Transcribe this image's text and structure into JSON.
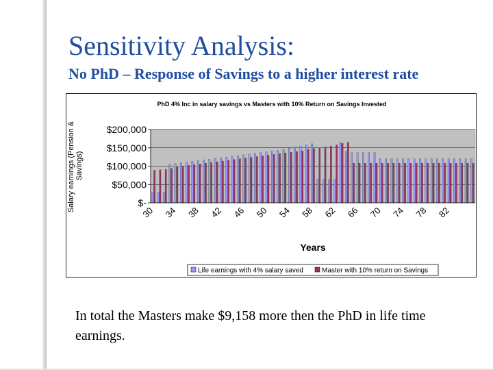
{
  "slide": {
    "title": "Sensitivity Analysis:",
    "subtitle": "No PhD – Response of Savings to a higher interest rate",
    "note": "In total the Masters make $9,158 more then the PhD in life time earnings."
  },
  "stripe_colors": [
    "#2b7fbd",
    "#87c6e8",
    "#e9e6c4",
    "#000000",
    "#4fa3d6",
    "#2a64c7",
    "#e9e6c4",
    "#1a1a1a",
    "#2aa7d6",
    "#bfe0f2"
  ],
  "chart_data": {
    "type": "bar",
    "title": "PhD 4% Inc in salary savings vs  Masters with 10% Return on Savings Invested",
    "xlabel": "Years",
    "ylabel": "Salary earnings (Pension & Savings)",
    "ylim": [
      0,
      200000
    ],
    "yticks": [
      {
        "value": 0,
        "label": "$-"
      },
      {
        "value": 50000,
        "label": "$50,000"
      },
      {
        "value": 100000,
        "label": "$100,000"
      },
      {
        "value": 150000,
        "label": "$150,000"
      },
      {
        "value": 200000,
        "label": "$200,000"
      }
    ],
    "x": [
      30,
      31,
      32,
      33,
      34,
      35,
      36,
      37,
      38,
      39,
      40,
      41,
      42,
      43,
      44,
      45,
      46,
      47,
      48,
      49,
      50,
      51,
      52,
      53,
      54,
      55,
      56,
      57,
      58,
      59,
      60,
      61,
      62,
      63,
      64,
      65,
      66,
      67,
      68,
      69,
      70,
      71,
      72,
      73,
      74,
      75,
      76,
      77,
      78,
      79,
      80,
      81,
      82,
      83,
      84,
      85,
      86
    ],
    "xtick_labels": [
      "30",
      "34",
      "38",
      "42",
      "46",
      "50",
      "54",
      "58",
      "62",
      "66",
      "70",
      "74",
      "78",
      "82"
    ],
    "xtick_every": 4,
    "grid": true,
    "plot_background": "#c0c0c0",
    "legend_position": "bottom",
    "series": [
      {
        "name": "Life earnings with 4% salary saved",
        "color": "#9999ff",
        "values": [
          28000,
          28000,
          28000,
          105000,
          107000,
          109000,
          111000,
          113000,
          115000,
          117000,
          119000,
          121000,
          123000,
          125000,
          127000,
          129000,
          131000,
          133000,
          135000,
          137000,
          139000,
          141000,
          143000,
          146000,
          149000,
          152000,
          155000,
          158000,
          161000,
          64000,
          64000,
          64000,
          64000,
          165000,
          140000,
          137000,
          137000,
          137000,
          137000,
          137000,
          120000,
          120000,
          120000,
          120000,
          120000,
          120000,
          120000,
          120000,
          120000,
          120000,
          120000,
          120000,
          120000,
          120000,
          120000,
          120000,
          120000
        ]
      },
      {
        "name": "Master with 10% return on Savings",
        "color": "#993366",
        "values": [
          89000,
          90000,
          91000,
          94000,
          97000,
          100000,
          102000,
          104000,
          106000,
          108000,
          110000,
          112000,
          114000,
          116000,
          118000,
          120000,
          122000,
          124000,
          126000,
          128000,
          130000,
          132000,
          134000,
          136000,
          138000,
          140000,
          142000,
          146000,
          148000,
          150000,
          152000,
          155000,
          158000,
          162000,
          165000,
          108000,
          108000,
          108000,
          108000,
          108000,
          108000,
          108000,
          108000,
          108000,
          108000,
          108000,
          108000,
          108000,
          108000,
          108000,
          108000,
          108000,
          108000,
          108000,
          108000,
          108000,
          108000
        ]
      }
    ]
  }
}
